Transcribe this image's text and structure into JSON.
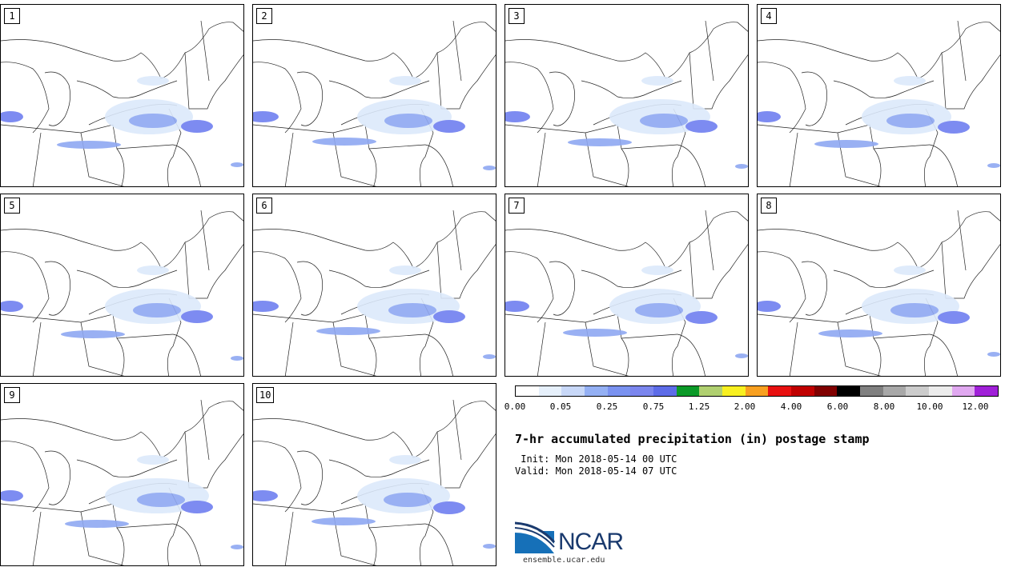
{
  "panels": [
    {
      "label": "1"
    },
    {
      "label": "2"
    },
    {
      "label": "3"
    },
    {
      "label": "4"
    },
    {
      "label": "5"
    },
    {
      "label": "6"
    },
    {
      "label": "7"
    },
    {
      "label": "8"
    },
    {
      "label": "9"
    },
    {
      "label": "10"
    }
  ],
  "colorbar": {
    "colors": [
      "#ffffff",
      "#e6f0fb",
      "#c8d8f8",
      "#94b0f4",
      "#7a92f0",
      "#7b86ee",
      "#5d6ce8",
      "#0b9a28",
      "#b0d070",
      "#f8f020",
      "#f8a020",
      "#e81010",
      "#c00000",
      "#800000",
      "#000000",
      "#808080",
      "#a8a8a8",
      "#cccccc",
      "#ececec",
      "#e0a8f0",
      "#a020d8"
    ],
    "tick_labels": [
      "0.00",
      "0.05",
      "0.25",
      "0.75",
      "1.25",
      "2.00",
      "4.00",
      "6.00",
      "8.00",
      "10.00",
      "12.00"
    ]
  },
  "title": "7-hr accumulated precipitation (in) postage stamp",
  "init": " Init: Mon 2018-05-14 00 UTC",
  "valid": "Valid: Mon 2018-05-14 07 UTC",
  "logo_text": "NCAR",
  "url": "ensemble.ucar.edu"
}
